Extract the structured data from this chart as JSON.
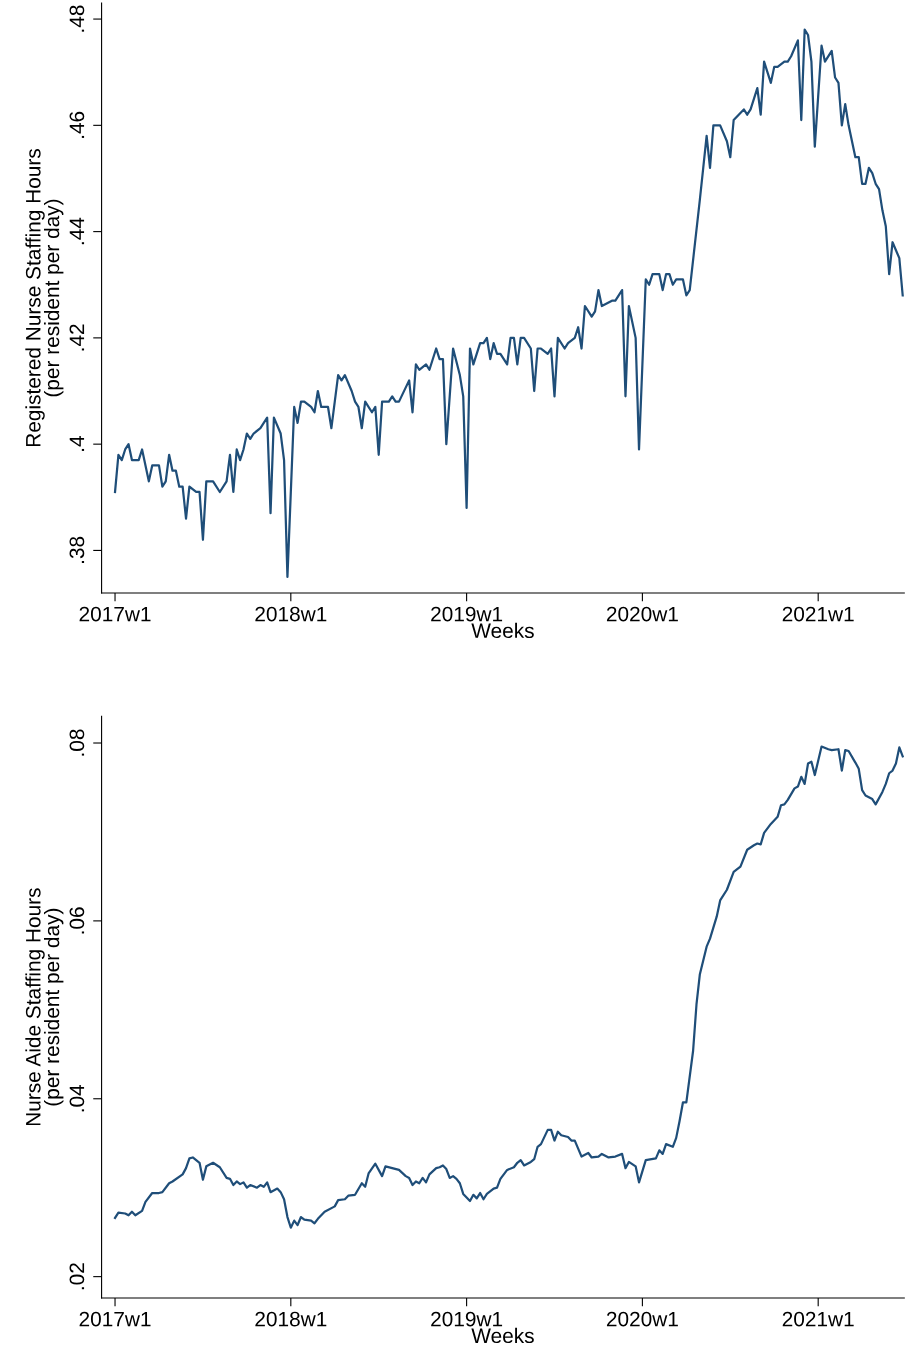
{
  "chart_data": [
    {
      "type": "line",
      "xlabel": "Weeks",
      "ylabel": "Registered Nurse Staffing Hours\n(per resident per day)",
      "ylim": [
        0.372,
        0.483
      ],
      "categories": [
        "2017w1",
        null,
        null,
        null,
        null,
        null,
        null,
        null,
        null,
        null,
        null,
        null,
        null,
        null,
        null,
        null,
        null,
        null,
        null,
        null,
        null,
        null,
        null,
        null,
        null,
        null,
        null,
        null,
        null,
        null,
        null,
        null,
        null,
        null,
        null,
        null,
        null,
        null,
        null,
        null,
        null,
        null,
        null,
        null,
        null,
        null,
        null,
        null,
        null,
        null,
        null,
        null,
        "2018w1",
        null,
        null,
        null,
        null,
        null,
        null,
        null,
        null,
        null,
        null,
        null,
        null,
        null,
        null,
        null,
        null,
        null,
        null,
        null,
        null,
        null,
        null,
        null,
        null,
        null,
        null,
        null,
        null,
        null,
        null,
        null,
        null,
        null,
        null,
        null,
        null,
        null,
        null,
        null,
        null,
        null,
        null,
        null,
        null,
        null,
        null,
        null,
        null,
        null,
        null,
        null,
        "2019w1",
        null,
        null,
        null,
        null,
        null,
        null,
        null,
        null,
        null,
        null,
        null,
        null,
        null,
        null,
        null,
        null,
        null,
        null,
        null,
        null,
        null,
        null,
        null,
        null,
        null,
        null,
        null,
        null,
        null,
        null,
        null,
        null,
        null,
        null,
        null,
        null,
        null,
        null,
        null,
        null,
        null,
        null,
        null,
        null,
        null,
        null,
        null,
        null,
        null,
        null,
        null,
        "2020w1",
        null,
        null,
        null,
        null,
        null,
        null,
        null,
        null,
        null,
        null,
        null,
        null,
        null,
        null,
        null,
        null,
        null,
        null,
        null,
        null,
        null,
        null,
        null,
        null,
        null,
        null,
        null,
        null,
        null,
        null,
        null,
        null,
        null,
        null,
        null,
        null,
        null,
        null,
        null,
        null,
        null,
        null,
        null,
        null,
        null,
        null,
        null,
        null,
        null,
        null,
        null,
        "2021w1",
        null,
        null,
        null,
        null,
        null,
        null,
        null,
        null,
        null,
        null,
        null,
        null,
        null,
        null,
        null,
        null,
        null,
        null,
        null,
        null,
        null,
        null,
        null,
        null,
        null
      ],
      "yticks": [
        {
          "value": 0.38,
          "label": ".38"
        },
        {
          "value": 0.4,
          "label": ".4"
        },
        {
          "value": 0.42,
          "label": ".42"
        },
        {
          "value": 0.44,
          "label": ".44"
        },
        {
          "value": 0.46,
          "label": ".46"
        },
        {
          "value": 0.48,
          "label": ".48"
        }
      ],
      "marker": "none",
      "line_style": "solid",
      "series": [
        {
          "color": "#1f4e79",
          "values": [
            0.391,
            0.398,
            0.397,
            0.399,
            0.4,
            0.397,
            null,
            0.397,
            0.399,
            null,
            0.393,
            0.396,
            null,
            0.396,
            0.392,
            0.393,
            0.398,
            0.395,
            0.395,
            0.392,
            0.392,
            0.386,
            0.392,
            null,
            0.391,
            0.391,
            0.382,
            0.393,
            null,
            0.393,
            null,
            0.391,
            null,
            0.393,
            0.398,
            0.391,
            0.399,
            0.397,
            0.399,
            0.402,
            0.401,
            0.402,
            null,
            0.403,
            null,
            0.405,
            0.387,
            0.405,
            null,
            0.402,
            0.397,
            0.375,
            null,
            0.407,
            0.404,
            0.408,
            0.408,
            null,
            0.407,
            0.406,
            0.41,
            0.407,
            null,
            0.407,
            0.403,
            null,
            0.413,
            0.412,
            0.413,
            null,
            0.41,
            0.408,
            0.407,
            0.403,
            0.408,
            null,
            0.406,
            0.407,
            0.398,
            0.408,
            null,
            0.408,
            0.409,
            0.408,
            0.408,
            null,
            null,
            0.412,
            0.406,
            0.415,
            0.414,
            null,
            0.415,
            0.414,
            null,
            0.418,
            0.416,
            0.416,
            0.4,
            null,
            0.418,
            null,
            0.413,
            0.409,
            0.388,
            0.418,
            0.415,
            null,
            0.419,
            0.419,
            0.42,
            0.416,
            0.419,
            0.417,
            0.417,
            null,
            0.415,
            0.42,
            0.42,
            0.415,
            0.42,
            0.42,
            null,
            0.418,
            0.41,
            0.418,
            0.418,
            null,
            0.417,
            0.418,
            0.409,
            0.42,
            null,
            0.418,
            0.419,
            null,
            0.42,
            0.422,
            0.418,
            0.426,
            null,
            0.424,
            0.425,
            0.429,
            0.426,
            null,
            null,
            0.427,
            0.427,
            null,
            0.429,
            0.409,
            0.426,
            null,
            0.42,
            0.399,
            null,
            0.431,
            0.43,
            0.432,
            null,
            0.432,
            0.429,
            0.432,
            0.432,
            0.43,
            0.431,
            null,
            0.431,
            0.428,
            0.429,
            null,
            null,
            0.446,
            0.452,
            0.458,
            0.452,
            0.46,
            null,
            0.46,
            null,
            0.457,
            0.454,
            0.461,
            null,
            null,
            0.463,
            0.462,
            0.463,
            null,
            0.467,
            0.462,
            0.472,
            null,
            0.468,
            0.471,
            0.471,
            null,
            0.472,
            0.472,
            0.473,
            null,
            0.476,
            0.461,
            0.478,
            0.477,
            0.472,
            0.456,
            null,
            0.475,
            0.472,
            null,
            0.474,
            0.469,
            0.468,
            0.46,
            0.464,
            0.46,
            null,
            0.454,
            0.454,
            0.449,
            0.449,
            0.452,
            0.451,
            0.449,
            0.448,
            0.444,
            0.441,
            0.432,
            0.438,
            null,
            0.435,
            0.428
          ]
        }
      ]
    },
    {
      "type": "line",
      "xlabel": "Weeks",
      "ylabel": "Nurse Aide Staffing Hours\n(per resident per day)",
      "ylim": [
        0.0176,
        0.083
      ],
      "categories": [
        "2017w1",
        null,
        null,
        null,
        null,
        null,
        null,
        null,
        null,
        null,
        null,
        null,
        null,
        null,
        null,
        null,
        null,
        null,
        null,
        null,
        null,
        null,
        null,
        null,
        null,
        null,
        null,
        null,
        null,
        null,
        null,
        null,
        null,
        null,
        null,
        null,
        null,
        null,
        null,
        null,
        null,
        null,
        null,
        null,
        null,
        null,
        null,
        null,
        null,
        null,
        null,
        null,
        "2018w1",
        null,
        null,
        null,
        null,
        null,
        null,
        null,
        null,
        null,
        null,
        null,
        null,
        null,
        null,
        null,
        null,
        null,
        null,
        null,
        null,
        null,
        null,
        null,
        null,
        null,
        null,
        null,
        null,
        null,
        null,
        null,
        null,
        null,
        null,
        null,
        null,
        null,
        null,
        null,
        null,
        null,
        null,
        null,
        null,
        null,
        null,
        null,
        null,
        null,
        null,
        null,
        "2019w1",
        null,
        null,
        null,
        null,
        null,
        null,
        null,
        null,
        null,
        null,
        null,
        null,
        null,
        null,
        null,
        null,
        null,
        null,
        null,
        null,
        null,
        null,
        null,
        null,
        null,
        null,
        null,
        null,
        null,
        null,
        null,
        null,
        null,
        null,
        null,
        null,
        null,
        null,
        null,
        null,
        null,
        null,
        null,
        null,
        null,
        null,
        null,
        null,
        null,
        null,
        null,
        "2020w1",
        null,
        null,
        null,
        null,
        null,
        null,
        null,
        null,
        null,
        null,
        null,
        null,
        null,
        null,
        null,
        null,
        null,
        null,
        null,
        null,
        null,
        null,
        null,
        null,
        null,
        null,
        null,
        null,
        null,
        null,
        null,
        null,
        null,
        null,
        null,
        null,
        null,
        null,
        null,
        null,
        null,
        null,
        null,
        null,
        null,
        null,
        null,
        null,
        null,
        null,
        null,
        "2021w1",
        null,
        null,
        null,
        null,
        null,
        null,
        null,
        null,
        null,
        null,
        null,
        null,
        null,
        null,
        null,
        null,
        null,
        null,
        null,
        null,
        null,
        null,
        null,
        null,
        null
      ],
      "yticks": [
        {
          "value": 0.02,
          "label": ".02"
        },
        {
          "value": 0.04,
          "label": ".04"
        },
        {
          "value": 0.06,
          "label": ".06"
        },
        {
          "value": 0.08,
          "label": ".08"
        }
      ],
      "marker": "none",
      "line_style": "solid",
      "series": [
        {
          "color": "#1f4e79",
          "values": [
            0.0266,
            0.0272,
            null,
            0.0271,
            0.0269,
            0.0273,
            0.0269,
            null,
            0.0274,
            0.0284,
            null,
            0.0294,
            null,
            0.0294,
            0.0295,
            null,
            0.0305,
            0.0307,
            null,
            null,
            0.0315,
            0.0322,
            0.0333,
            0.0334,
            null,
            0.0328,
            0.0309,
            0.0324,
            null,
            0.0328,
            null,
            0.0323,
            null,
            0.0311,
            0.031,
            0.0303,
            0.0307,
            0.0304,
            0.0306,
            0.03,
            0.0303,
            null,
            0.03,
            0.0303,
            0.0301,
            0.0306,
            0.0295,
            null,
            0.0299,
            0.0295,
            0.0287,
            0.0267,
            0.0255,
            0.0263,
            0.0258,
            0.0267,
            0.0264,
            null,
            0.0263,
            0.026,
            0.0265,
            null,
            0.0273,
            null,
            null,
            0.0279,
            0.0286,
            null,
            0.0287,
            0.0291,
            null,
            0.0292,
            null,
            0.0305,
            0.0301,
            0.0316,
            null,
            0.0327,
            null,
            0.0313,
            0.0324,
            null,
            0.0322,
            null,
            0.032,
            null,
            0.0313,
            0.0311,
            0.0303,
            0.0307,
            0.0305,
            0.0311,
            0.0306,
            0.0315,
            null,
            0.0322,
            0.0323,
            0.0325,
            0.0321,
            0.0311,
            0.0313,
            0.031,
            0.0305,
            0.0293,
            null,
            0.0285,
            0.0292,
            0.0288,
            0.0294,
            0.0287,
            0.0293,
            null,
            0.0299,
            0.03,
            0.031,
            null,
            0.032,
            null,
            0.0323,
            0.0328,
            0.0331,
            0.0325,
            null,
            0.0329,
            0.0332,
            0.0346,
            0.0349,
            null,
            0.0365,
            0.0365,
            0.0353,
            0.0363,
            0.0359,
            null,
            0.0357,
            0.0353,
            0.0353,
            null,
            0.0335,
            null,
            0.0339,
            0.0334,
            null,
            0.0335,
            0.0338,
            null,
            0.0334,
            null,
            0.0335,
            null,
            0.0338,
            0.0322,
            0.0329,
            null,
            0.0324,
            0.0306,
            null,
            0.0331,
            null,
            null,
            0.0333,
            0.0342,
            0.0338,
            0.0349,
            null,
            0.0346,
            0.0356,
            0.0375,
            0.0396,
            0.0396,
            null,
            0.0454,
            0.0506,
            0.054,
            null,
            0.0571,
            0.058,
            null,
            0.0605,
            0.0623,
            null,
            0.0635,
            null,
            0.0655,
            null,
            0.0661,
            null,
            0.068,
            null,
            0.0685,
            0.0687,
            0.0686,
            0.0699,
            null,
            0.0709,
            null,
            0.0717,
            0.073,
            0.0731,
            0.0736,
            null,
            0.0749,
            0.0751,
            0.0762,
            0.0754,
            0.0777,
            0.0779,
            0.0764,
            null,
            0.0796,
            null,
            0.0793,
            0.0792,
            null,
            0.0793,
            0.0769,
            0.0792,
            0.0791,
            null,
            0.0778,
            0.0771,
            0.0747,
            0.0741,
            null,
            0.0737,
            0.0731,
            null,
            0.0745,
            0.0754,
            0.0766,
            0.0769,
            0.0777,
            0.0795,
            0.0785
          ]
        }
      ]
    }
  ]
}
